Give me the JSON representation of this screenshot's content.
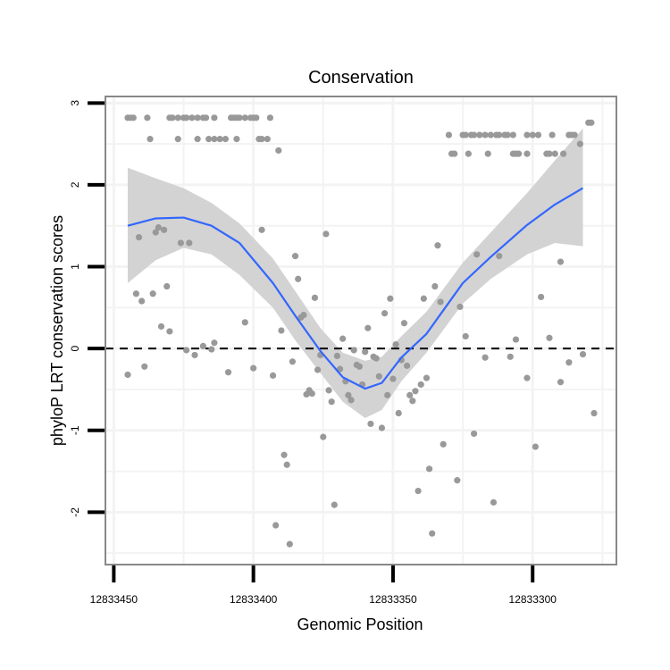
{
  "chart_data": {
    "type": "scatter",
    "title": "Conservation",
    "xlabel": "Genomic Position",
    "ylabel": "phyloP LRT conservation scores",
    "xlim": [
      12833453,
      12833270
    ],
    "x_reversed": true,
    "ylim": [
      -2.64,
      3.08
    ],
    "grid": true,
    "x_ticks": [
      12833450,
      12833400,
      12833350,
      12833300
    ],
    "x_tick_labels": [
      "12833450",
      "12833400",
      "12833350",
      "12833300"
    ],
    "y_ticks": [
      3,
      2,
      1,
      0,
      -1,
      -2
    ],
    "y_tick_labels": [
      "3",
      "2",
      "1",
      "0",
      "-1",
      "-2"
    ],
    "reference_line": {
      "y": 0,
      "style": "dashed"
    },
    "colors": {
      "points": "#999999",
      "smooth": "#3366FF",
      "band": "#D3D3D3",
      "panel_border": "#888888",
      "grid": "#F3F3F3"
    },
    "points": [
      [
        12833445,
        2.82
      ],
      [
        12833444,
        2.82
      ],
      [
        12833443,
        2.82
      ],
      [
        12833438,
        2.82
      ],
      [
        12833430,
        2.82
      ],
      [
        12833429,
        2.82
      ],
      [
        12833427,
        2.82
      ],
      [
        12833425,
        2.82
      ],
      [
        12833424,
        2.82
      ],
      [
        12833422,
        2.82
      ],
      [
        12833420,
        2.82
      ],
      [
        12833418,
        2.82
      ],
      [
        12833417,
        2.82
      ],
      [
        12833414,
        2.82
      ],
      [
        12833408,
        2.82
      ],
      [
        12833407,
        2.82
      ],
      [
        12833406,
        2.82
      ],
      [
        12833405,
        2.82
      ],
      [
        12833403,
        2.82
      ],
      [
        12833401,
        2.82
      ],
      [
        12833400,
        2.82
      ],
      [
        12833399,
        2.82
      ],
      [
        12833394,
        2.82
      ],
      [
        12833437,
        2.56
      ],
      [
        12833427,
        2.56
      ],
      [
        12833420,
        2.56
      ],
      [
        12833416,
        2.56
      ],
      [
        12833414,
        2.56
      ],
      [
        12833412,
        2.56
      ],
      [
        12833410,
        2.56
      ],
      [
        12833406,
        2.56
      ],
      [
        12833398,
        2.56
      ],
      [
        12833397,
        2.56
      ],
      [
        12833395,
        2.56
      ],
      [
        12833391,
        2.42
      ],
      [
        12833330,
        2.61
      ],
      [
        12833325,
        2.61
      ],
      [
        12833324,
        2.61
      ],
      [
        12833322,
        2.61
      ],
      [
        12833321,
        2.61
      ],
      [
        12833319,
        2.61
      ],
      [
        12833317,
        2.61
      ],
      [
        12833315,
        2.61
      ],
      [
        12833313,
        2.61
      ],
      [
        12833312,
        2.61
      ],
      [
        12833310,
        2.61
      ],
      [
        12833309,
        2.61
      ],
      [
        12833307,
        2.61
      ],
      [
        12833302,
        2.61
      ],
      [
        12833300,
        2.61
      ],
      [
        12833298,
        2.61
      ],
      [
        12833293,
        2.61
      ],
      [
        12833287,
        2.61
      ],
      [
        12833286,
        2.61
      ],
      [
        12833285,
        2.61
      ],
      [
        12833329,
        2.38
      ],
      [
        12833328,
        2.38
      ],
      [
        12833323,
        2.38
      ],
      [
        12833316,
        2.38
      ],
      [
        12833307,
        2.38
      ],
      [
        12833306,
        2.38
      ],
      [
        12833305,
        2.38
      ],
      [
        12833302,
        2.38
      ],
      [
        12833295,
        2.38
      ],
      [
        12833294,
        2.38
      ],
      [
        12833292,
        2.38
      ],
      [
        12833289,
        2.38
      ],
      [
        12833280,
        2.76
      ],
      [
        12833279,
        2.76
      ],
      [
        12833283,
        2.5
      ],
      [
        12833441,
        1.36
      ],
      [
        12833435,
        1.42
      ],
      [
        12833434,
        1.48
      ],
      [
        12833432,
        1.45
      ],
      [
        12833426,
        1.29
      ],
      [
        12833423,
        1.29
      ],
      [
        12833397,
        1.45
      ],
      [
        12833374,
        1.4
      ],
      [
        12833385,
        1.13
      ],
      [
        12833384,
        0.85
      ],
      [
        12833378,
        0.62
      ],
      [
        12833382,
        0.41
      ],
      [
        12833383,
        0.38
      ],
      [
        12833390,
        0.22
      ],
      [
        12833368,
        0.12
      ],
      [
        12833403,
        0.32
      ],
      [
        12833442,
        0.67
      ],
      [
        12833440,
        0.58
      ],
      [
        12833436,
        0.67
      ],
      [
        12833431,
        0.76
      ],
      [
        12833433,
        0.27
      ],
      [
        12833430,
        0.21
      ],
      [
        12833424,
        -0.02
      ],
      [
        12833421,
        -0.08
      ],
      [
        12833418,
        0.03
      ],
      [
        12833415,
        -0.01
      ],
      [
        12833414,
        0.07
      ],
      [
        12833334,
        1.26
      ],
      [
        12833320,
        1.15
      ],
      [
        12833312,
        1.13
      ],
      [
        12833290,
        1.06
      ],
      [
        12833335,
        0.76
      ],
      [
        12833351,
        0.61
      ],
      [
        12833339,
        0.61
      ],
      [
        12833333,
        0.57
      ],
      [
        12833326,
        0.51
      ],
      [
        12833297,
        0.63
      ],
      [
        12833353,
        0.43
      ],
      [
        12833346,
        0.31
      ],
      [
        12833359,
        0.25
      ],
      [
        12833349,
        0.05
      ],
      [
        12833324,
        0.15
      ],
      [
        12833306,
        0.11
      ],
      [
        12833294,
        0.13
      ],
      [
        12833360,
        -0.04
      ],
      [
        12833282,
        -0.07
      ],
      [
        12833445,
        -0.32
      ],
      [
        12833439,
        -0.22
      ],
      [
        12833409,
        -0.29
      ],
      [
        12833400,
        -0.24
      ],
      [
        12833393,
        -0.33
      ],
      [
        12833386,
        -0.16
      ],
      [
        12833381,
        -0.56
      ],
      [
        12833380,
        -0.51
      ],
      [
        12833379,
        -0.55
      ],
      [
        12833377,
        -0.26
      ],
      [
        12833376,
        -0.08
      ],
      [
        12833373,
        -0.51
      ],
      [
        12833372,
        -0.65
      ],
      [
        12833370,
        -0.09
      ],
      [
        12833369,
        -0.25
      ],
      [
        12833367,
        -0.4
      ],
      [
        12833366,
        -0.57
      ],
      [
        12833365,
        -0.63
      ],
      [
        12833364,
        -0.02
      ],
      [
        12833363,
        -0.2
      ],
      [
        12833362,
        -0.22
      ],
      [
        12833361,
        -0.44
      ],
      [
        12833357,
        -0.1
      ],
      [
        12833356,
        -0.12
      ],
      [
        12833355,
        -0.34
      ],
      [
        12833352,
        -0.57
      ],
      [
        12833350,
        -0.37
      ],
      [
        12833347,
        -0.14
      ],
      [
        12833345,
        -0.21
      ],
      [
        12833348,
        -0.79
      ],
      [
        12833358,
        -0.92
      ],
      [
        12833354,
        -0.97
      ],
      [
        12833344,
        -0.57
      ],
      [
        12833342,
        -0.52
      ],
      [
        12833343,
        -0.64
      ],
      [
        12833340,
        -0.44
      ],
      [
        12833338,
        -0.36
      ],
      [
        12833317,
        -0.11
      ],
      [
        12833308,
        -0.1
      ],
      [
        12833302,
        -0.36
      ],
      [
        12833290,
        -0.41
      ],
      [
        12833287,
        -0.17
      ],
      [
        12833278,
        -0.79
      ],
      [
        12833375,
        -1.08
      ],
      [
        12833389,
        -1.3
      ],
      [
        12833388,
        -1.42
      ],
      [
        12833392,
        -2.16
      ],
      [
        12833387,
        -2.39
      ],
      [
        12833371,
        -1.91
      ],
      [
        12833332,
        -1.17
      ],
      [
        12833321,
        -1.04
      ],
      [
        12833337,
        -1.47
      ],
      [
        12833327,
        -1.61
      ],
      [
        12833341,
        -1.74
      ],
      [
        12833314,
        -1.88
      ],
      [
        12833336,
        -2.26
      ],
      [
        12833299,
        -1.2
      ]
    ],
    "smooth": {
      "method": "loess",
      "x": [
        12833445,
        12833435,
        12833425,
        12833415,
        12833405,
        12833393,
        12833385,
        12833376,
        12833368,
        12833360,
        12833354,
        12833347,
        12833338,
        12833325,
        12833315,
        12833302,
        12833292,
        12833282
      ],
      "y": [
        1.5,
        1.59,
        1.6,
        1.5,
        1.29,
        0.8,
        0.4,
        -0.03,
        -0.35,
        -0.49,
        -0.42,
        -0.11,
        0.18,
        0.8,
        1.12,
        1.51,
        1.76,
        1.96
      ],
      "lower": [
        0.8,
        1.08,
        1.23,
        1.15,
        0.9,
        0.5,
        0.1,
        -0.3,
        -0.65,
        -0.85,
        -0.75,
        -0.4,
        -0.05,
        0.55,
        0.85,
        1.15,
        1.29,
        1.25
      ],
      "upper": [
        2.21,
        2.08,
        1.96,
        1.78,
        1.53,
        1.1,
        0.7,
        0.25,
        -0.05,
        -0.15,
        -0.1,
        0.15,
        0.45,
        1.05,
        1.42,
        1.9,
        2.3,
        2.69
      ]
    }
  }
}
